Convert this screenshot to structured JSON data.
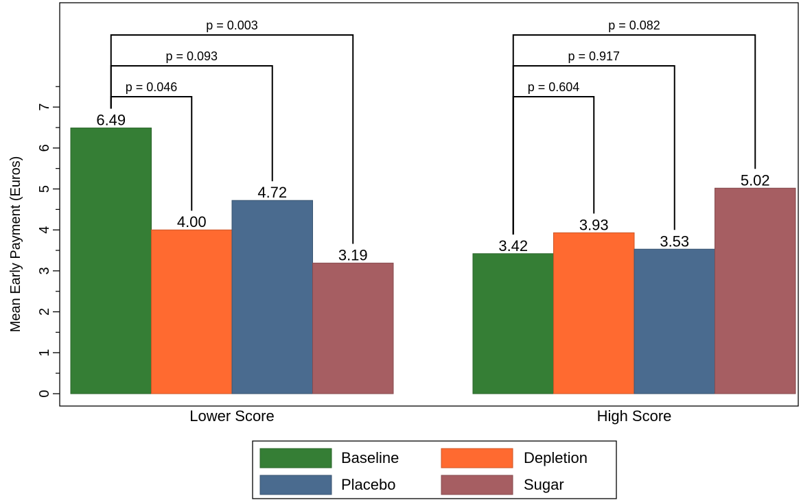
{
  "chart_data": {
    "type": "bar",
    "ylabel": "Mean Early Payment (Euros)",
    "ylim": [
      0,
      7.5
    ],
    "yticks": [
      0,
      1,
      2,
      3,
      4,
      5,
      6,
      7
    ],
    "categories": [
      "Lower Score",
      "High Score"
    ],
    "series": [
      {
        "name": "Baseline",
        "color": "#357e35",
        "values": [
          6.49,
          3.42
        ],
        "labels": [
          "6.49",
          "3.42"
        ]
      },
      {
        "name": "Depletion",
        "color": "#ff6a30",
        "values": [
          4.0,
          3.93
        ],
        "labels": [
          "4.00",
          "3.93"
        ]
      },
      {
        "name": "Placebo",
        "color": "#4a6b8f",
        "values": [
          4.72,
          3.53
        ],
        "labels": [
          "4.72",
          "3.53"
        ]
      },
      {
        "name": "Sugar",
        "color": "#a65e62",
        "values": [
          3.19,
          5.02
        ],
        "labels": [
          "3.19",
          "5.02"
        ]
      }
    ],
    "comparisons": [
      {
        "group": 0,
        "from": 0,
        "to": 1,
        "label": "p = 0.046"
      },
      {
        "group": 0,
        "from": 0,
        "to": 2,
        "label": "p = 0.093"
      },
      {
        "group": 0,
        "from": 0,
        "to": 3,
        "label": "p = 0.003"
      },
      {
        "group": 1,
        "from": 0,
        "to": 1,
        "label": "p = 0.604"
      },
      {
        "group": 1,
        "from": 0,
        "to": 2,
        "label": "p = 0.917"
      },
      {
        "group": 1,
        "from": 0,
        "to": 3,
        "label": "p = 0.082"
      }
    ],
    "legend": {
      "position": "bottom-center",
      "columns": 2
    }
  }
}
